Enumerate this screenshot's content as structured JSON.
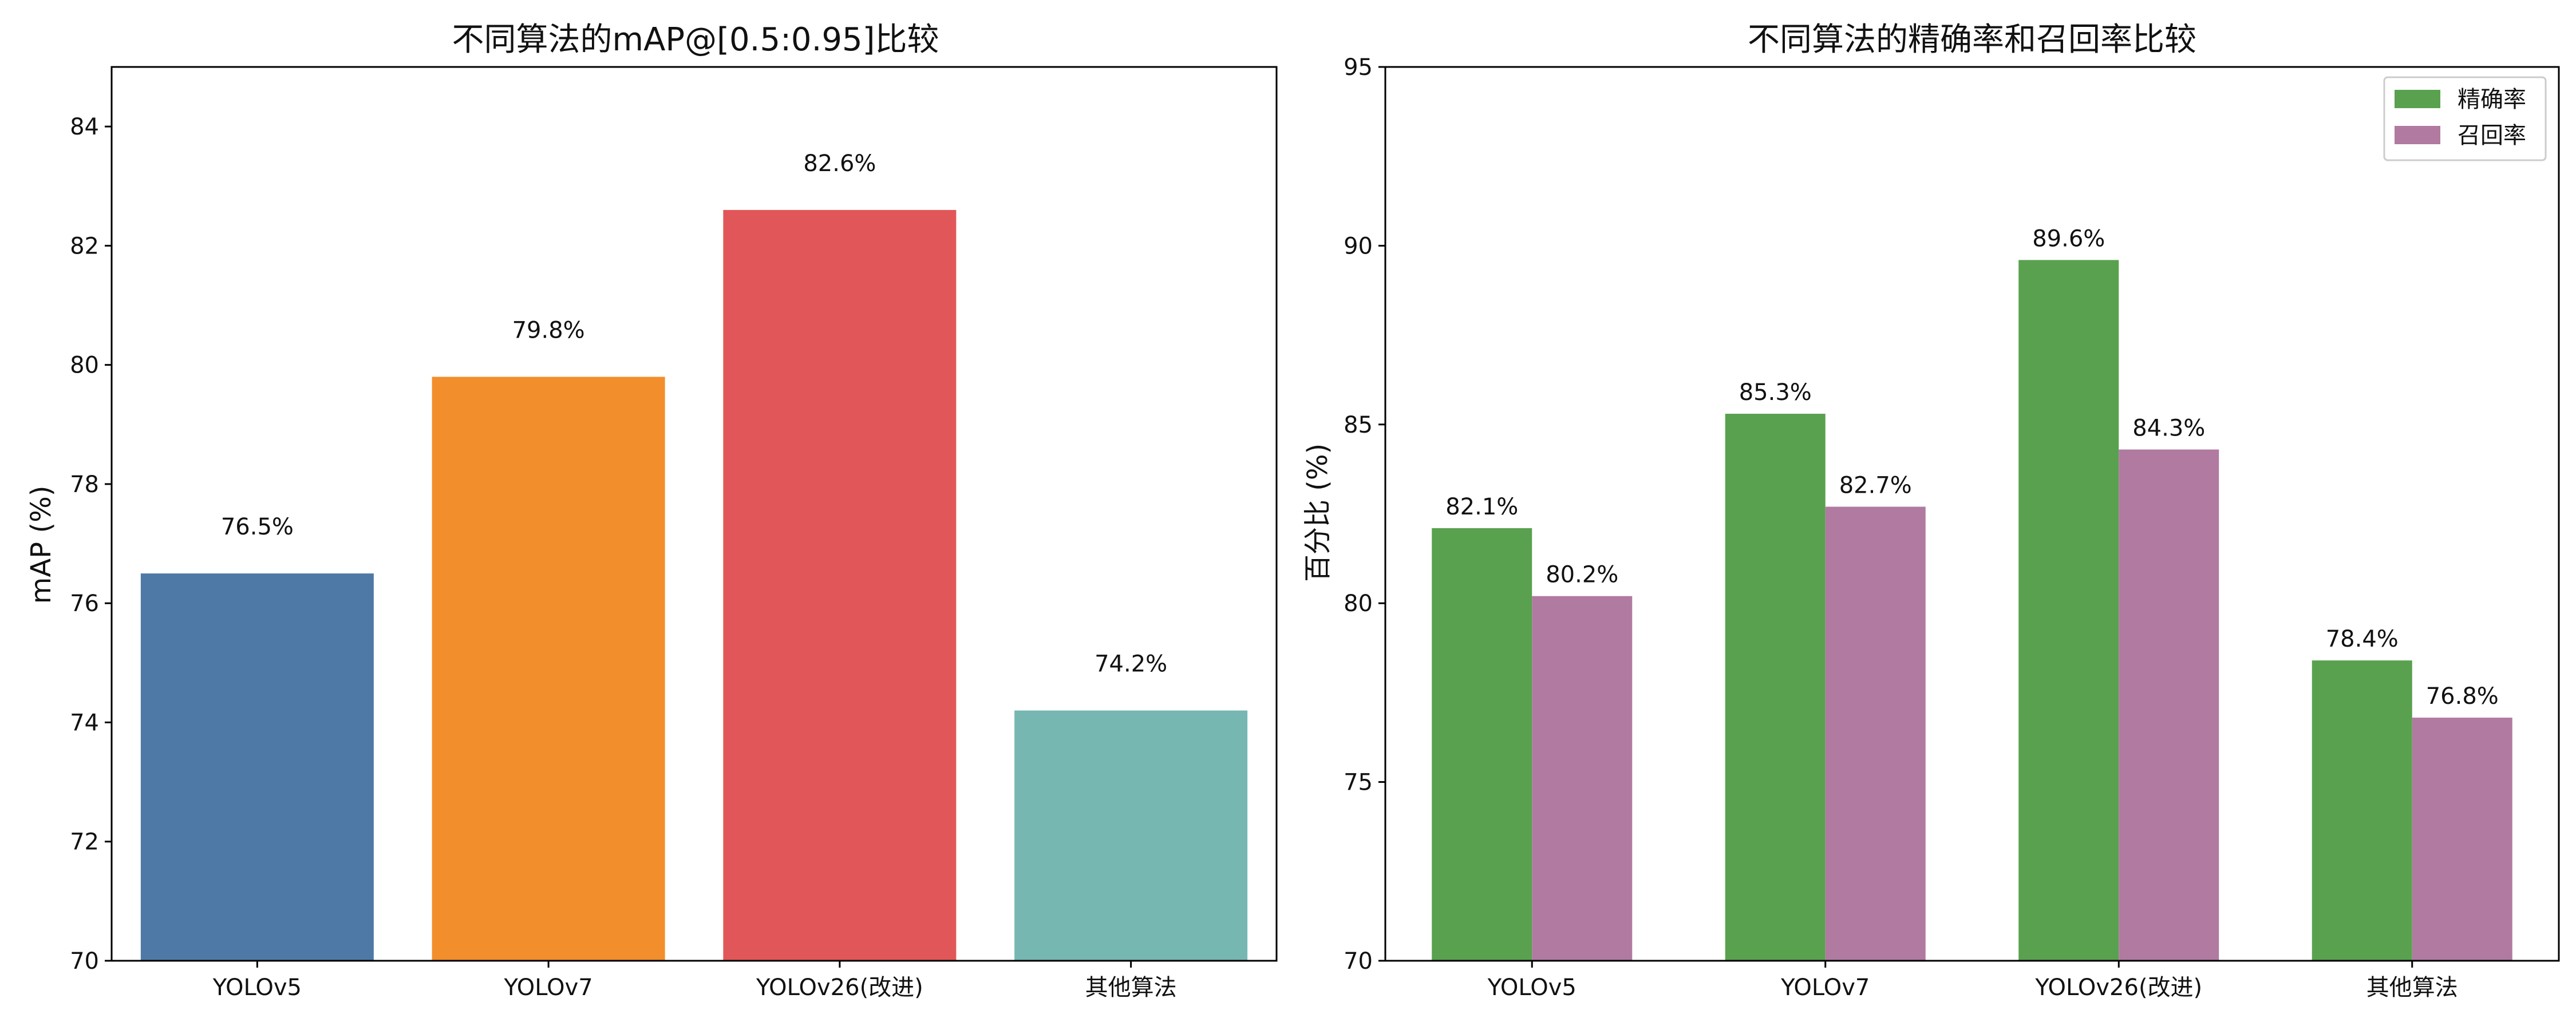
{
  "chart_data": [
    {
      "type": "bar",
      "title": "不同算法的mAP@[0.5:0.95]比较",
      "xlabel": "",
      "ylabel": "mAP (%)",
      "categories": [
        "YOLOv5",
        "YOLOv7",
        "YOLOv26(改进)",
        "其他算法"
      ],
      "values": [
        76.5,
        79.8,
        82.6,
        74.2
      ],
      "value_labels": [
        "76.5%",
        "79.8%",
        "82.6%",
        "74.2%"
      ],
      "colors": [
        "#4e79a7",
        "#f28e2b",
        "#e15759",
        "#76b7b2"
      ],
      "ylim": [
        70,
        85
      ],
      "yticks": [
        "70",
        "72",
        "74",
        "76",
        "78",
        "80",
        "82",
        "84"
      ],
      "grid": false
    },
    {
      "type": "bar",
      "title": "不同算法的精确率和召回率比较",
      "xlabel": "",
      "ylabel": "百分比 (%)",
      "categories": [
        "YOLOv5",
        "YOLOv7",
        "YOLOv26(改进)",
        "其他算法"
      ],
      "series": [
        {
          "name": "精确率",
          "values": [
            82.1,
            85.3,
            89.6,
            78.4
          ],
          "value_labels": [
            "82.1%",
            "85.3%",
            "89.6%",
            "78.4%"
          ],
          "color": "#59a14f"
        },
        {
          "name": "召回率",
          "values": [
            80.2,
            82.7,
            84.3,
            76.8
          ],
          "value_labels": [
            "80.2%",
            "82.7%",
            "84.3%",
            "76.8%"
          ],
          "color": "#b07aa1"
        }
      ],
      "ylim": [
        70,
        95
      ],
      "yticks": [
        "70",
        "75",
        "80",
        "85",
        "90",
        "95"
      ],
      "legend": "top-right",
      "grid": false
    }
  ]
}
